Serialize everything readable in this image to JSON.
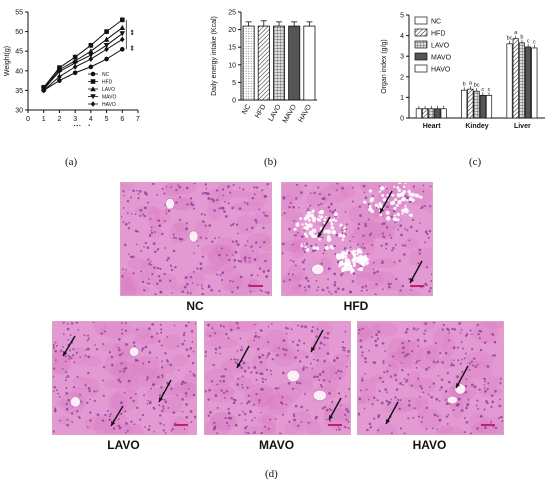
{
  "panel_labels": {
    "a": "(a)",
    "b": "(b)",
    "c": "(c)",
    "d": "(d)"
  },
  "chart_data": [
    {
      "type": "line",
      "xlabel": "Week",
      "ylabel": "Weight(g)",
      "xlim": [
        0,
        7
      ],
      "ylim": [
        30,
        55
      ],
      "xticks": [
        "0",
        "1",
        "2",
        "3",
        "4",
        "5",
        "6",
        "7"
      ],
      "yticks": [
        "30",
        "35",
        "40",
        "45",
        "50",
        "55"
      ],
      "x": [
        1,
        2,
        3,
        4,
        5,
        6
      ],
      "legend_position": "lower-right",
      "significance": [
        "**",
        "**"
      ],
      "series": [
        {
          "name": "NC",
          "marker": "circle",
          "values": [
            35.0,
            37.5,
            39.5,
            41.0,
            43.0,
            45.5
          ]
        },
        {
          "name": "HFD",
          "marker": "square",
          "values": [
            35.8,
            40.8,
            43.5,
            46.5,
            50.0,
            53.0
          ]
        },
        {
          "name": "LAVO",
          "marker": "triangle",
          "values": [
            35.5,
            40.3,
            42.5,
            45.0,
            48.0,
            51.0
          ]
        },
        {
          "name": "MAVO",
          "marker": "triangle-down",
          "values": [
            35.3,
            39.8,
            42.0,
            44.0,
            46.5,
            49.5
          ]
        },
        {
          "name": "HAVO",
          "marker": "diamond",
          "values": [
            35.0,
            38.5,
            41.0,
            43.0,
            45.5,
            48.0
          ]
        }
      ]
    },
    {
      "type": "bar",
      "ylabel": "Daily energy intake (Kcal)",
      "ylim": [
        0,
        25
      ],
      "yticks": [
        "0",
        "5",
        "10",
        "15",
        "20",
        "25"
      ],
      "categories": [
        "NC",
        "HFD",
        "LAVO",
        "MAVO",
        "HAVO"
      ],
      "values": [
        21.0,
        21.0,
        21.0,
        21.0,
        21.0
      ],
      "errors": [
        1.2,
        1.5,
        1.2,
        1.2,
        1.2
      ],
      "fills": [
        "dots",
        "hatch",
        "grid",
        "dark",
        "white"
      ]
    },
    {
      "type": "bar",
      "ylabel": "Organ index (g/g)",
      "ylim": [
        0,
        5
      ],
      "yticks": [
        "0",
        "1",
        "2",
        "3",
        "4",
        "5"
      ],
      "categories": [
        "Heart",
        "Kindey",
        "Liver"
      ],
      "legend_position": "top-left",
      "series": [
        {
          "name": "NC",
          "fill": "white",
          "values": [
            0.45,
            1.35,
            3.6
          ],
          "letters": [
            "",
            "b",
            "bc"
          ]
        },
        {
          "name": "HFD",
          "fill": "hatch",
          "values": [
            0.45,
            1.4,
            3.85
          ],
          "letters": [
            "",
            "a",
            "a"
          ]
        },
        {
          "name": "LAVO",
          "fill": "grid",
          "values": [
            0.45,
            1.3,
            3.65
          ],
          "letters": [
            "",
            "bc",
            "b"
          ]
        },
        {
          "name": "MAVO",
          "fill": "dark",
          "values": [
            0.45,
            1.1,
            3.45
          ],
          "letters": [
            "",
            "c",
            "c"
          ]
        },
        {
          "name": "HAVO",
          "fill": "white",
          "values": [
            0.45,
            1.1,
            3.4
          ],
          "letters": [
            "",
            "c",
            "c"
          ]
        }
      ]
    }
  ],
  "micrographs": [
    {
      "label": "NC"
    },
    {
      "label": "HFD"
    },
    {
      "label": "LAVO"
    },
    {
      "label": "MAVO"
    },
    {
      "label": "HAVO"
    }
  ]
}
